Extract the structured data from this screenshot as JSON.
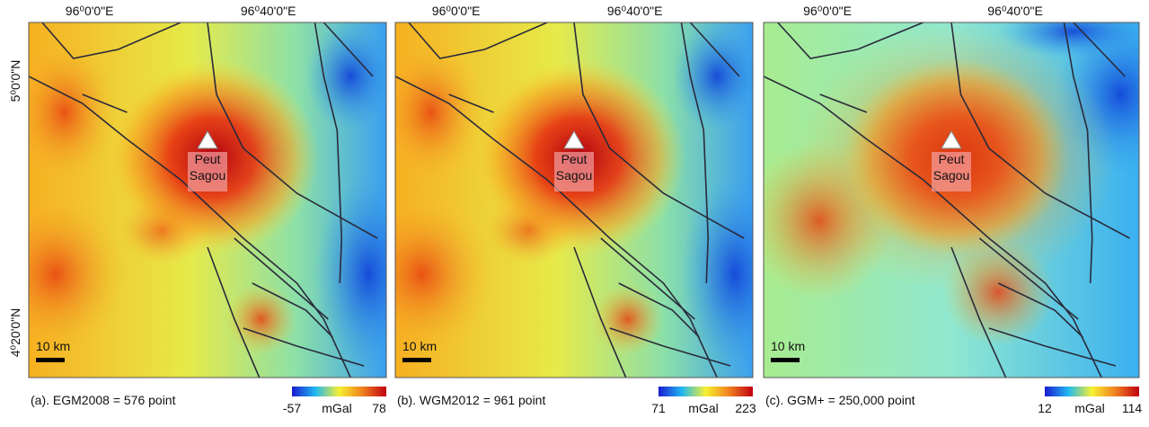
{
  "axes": {
    "x_labels": [
      "96⁰0'0\"E",
      "96⁰40'0\"E"
    ],
    "y_labels": [
      "5⁰0'0\"N",
      "4⁰20'0\"N"
    ]
  },
  "panels": [
    {
      "caption": "(a). EGM2008 = 576 point",
      "scale_bar": "10 km",
      "place": [
        "Peut",
        "Sagou"
      ],
      "colorbar": {
        "min": -57,
        "unit": "mGal",
        "max": 78
      }
    },
    {
      "caption": "(b). WGM2012 = 961 point",
      "scale_bar": "10 km",
      "place": [
        "Peut",
        "Sagou"
      ],
      "colorbar": {
        "min": 71,
        "unit": "mGal",
        "max": 223
      }
    },
    {
      "caption": "(c). GGM+ = 250,000 point",
      "scale_bar": "10 km",
      "place": [
        "Peut",
        "Sagou"
      ],
      "colorbar": {
        "min": 12,
        "unit": "mGal",
        "max": 114
      }
    }
  ]
}
